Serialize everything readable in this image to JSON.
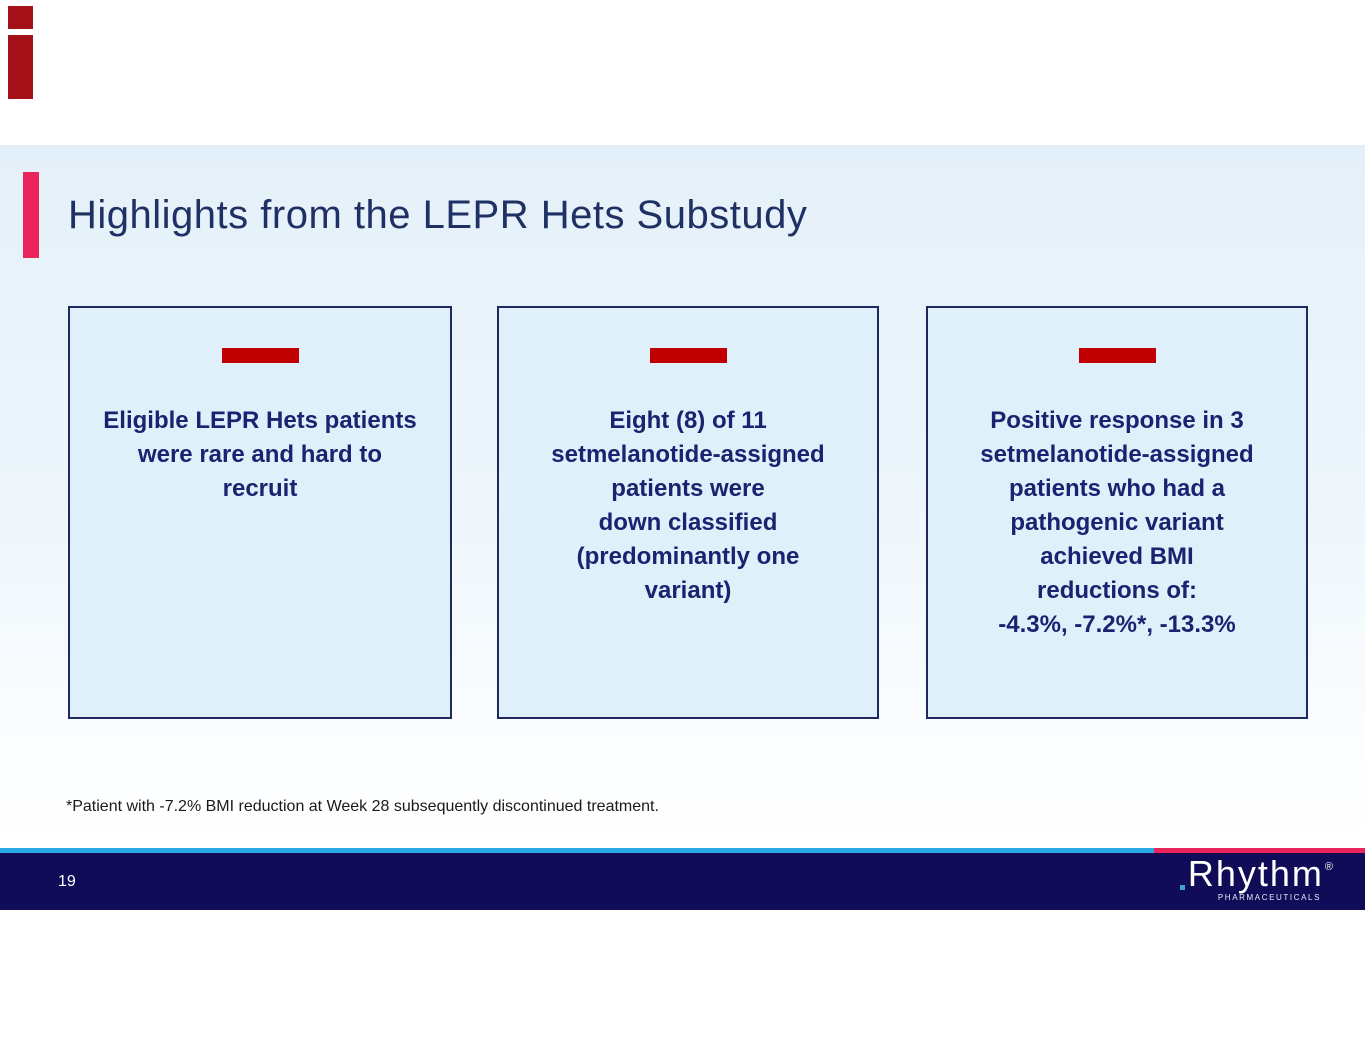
{
  "slide": {
    "title": "Highlights from the LEPR Hets Substudy",
    "page_number": "19",
    "footnote": "*Patient with -7.2% BMI reduction at Week 28 subsequently discontinued treatment."
  },
  "cards": [
    {
      "text": "Eligible LEPR Hets patients\nwere rare and hard to\nrecruit"
    },
    {
      "text": "Eight (8) of 11\nsetmelanotide-assigned\npatients were\ndown classified\n(predominantly one\nvariant)"
    },
    {
      "text": "Positive response in 3\nsetmelanotide-assigned\npatients who had a\npathogenic variant\nachieved BMI\nreductions of:\n-4.3%, -7.2%*, -13.3%"
    }
  ],
  "footer": {
    "logo_text": "Rhythm",
    "logo_registered": "®",
    "logo_subtext": "PHARMACEUTICALS"
  },
  "colors": {
    "navy-text": "#1B2270",
    "title-navy": "#1F3064",
    "crimson": "#E8245A",
    "card-red": "#C00000",
    "cyan": "#29A9E1",
    "footer-navy": "#100C58",
    "card-fill": "#DFF0FB",
    "card-border": "#1E2A5E",
    "corner-red": "#A41118",
    "logo-dot-blue": "#3FA0D8"
  }
}
